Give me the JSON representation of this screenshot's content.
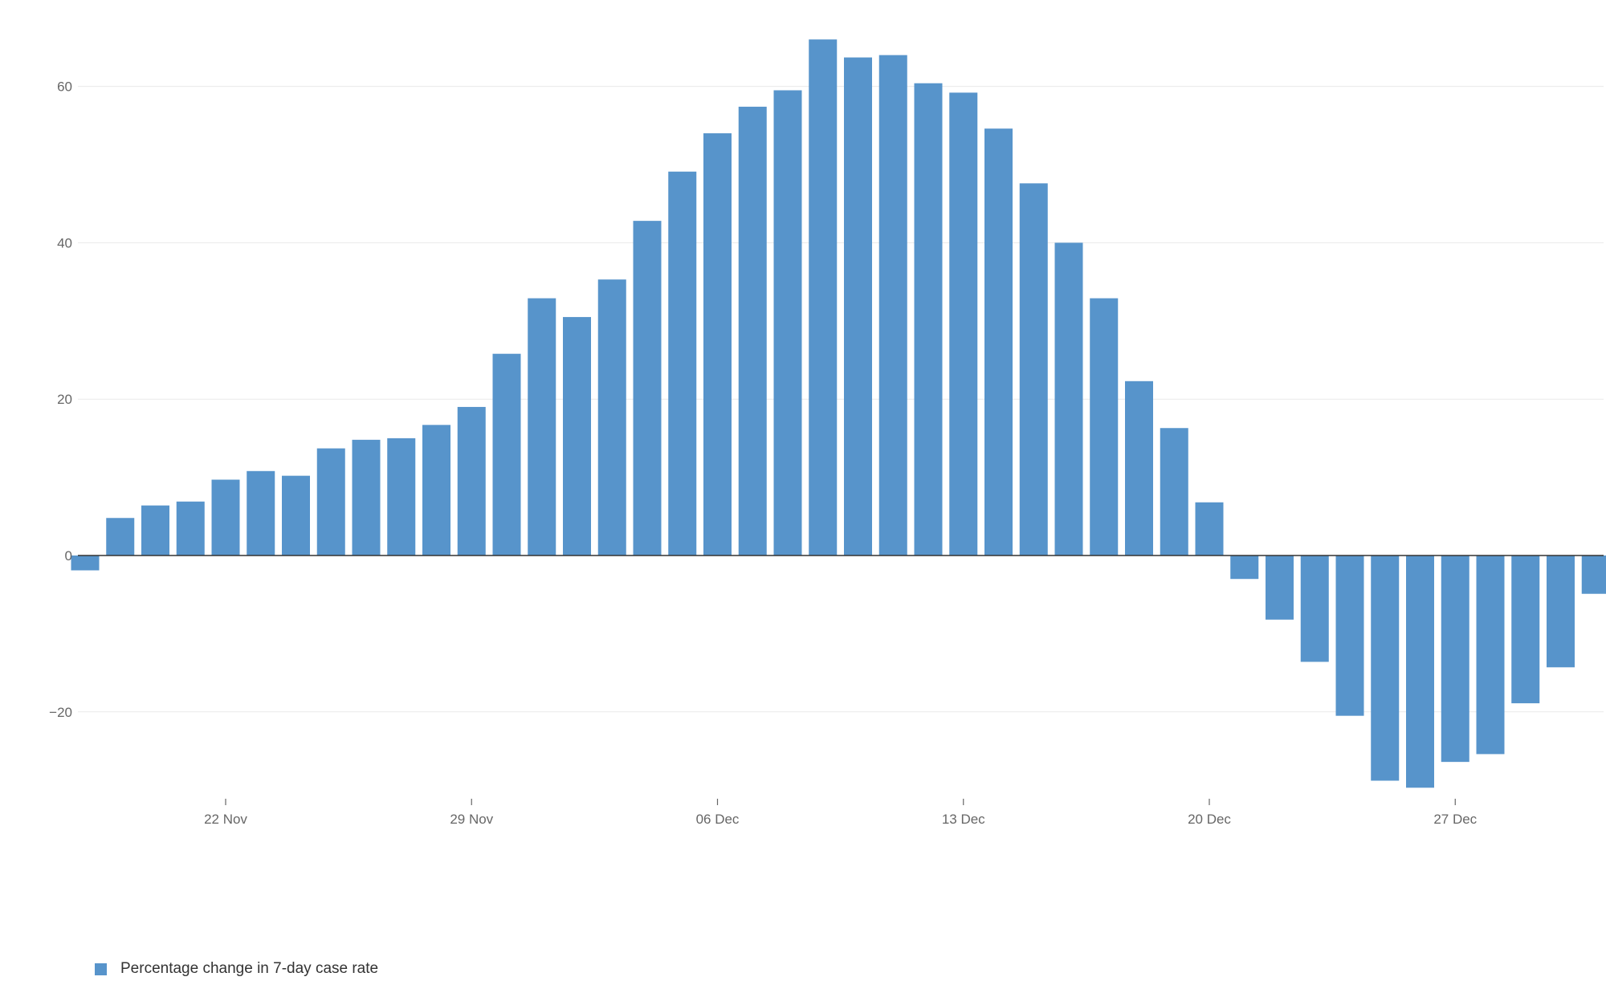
{
  "chart_data": {
    "type": "bar",
    "title": "",
    "xlabel": "",
    "ylabel": "",
    "ylim": [
      -30,
      66
    ],
    "yticks": [
      -20,
      0,
      20,
      40,
      60
    ],
    "ytick_labels": [
      "−20",
      "0",
      "20",
      "40",
      "60"
    ],
    "grid": true,
    "legend_position": "bottom-left",
    "bar_color": "#5794cb",
    "x_start": "2020-11-18",
    "xticks": [
      {
        "date": "2020-11-22",
        "label": "22 Nov"
      },
      {
        "date": "2020-11-29",
        "label": "29 Nov"
      },
      {
        "date": "2020-12-06",
        "label": "06 Dec"
      },
      {
        "date": "2020-12-13",
        "label": "13 Dec"
      },
      {
        "date": "2020-12-20",
        "label": "20 Dec"
      },
      {
        "date": "2020-12-27",
        "label": "27 Dec"
      }
    ],
    "series": [
      {
        "name": "Percentage change in 7-day case rate",
        "color": "#5794cb",
        "values": [
          -1.9,
          4.8,
          6.4,
          6.9,
          9.7,
          10.8,
          10.2,
          13.7,
          14.8,
          15.0,
          16.7,
          19.0,
          25.8,
          32.9,
          30.5,
          35.3,
          42.8,
          49.1,
          54.0,
          57.4,
          59.5,
          66.0,
          63.7,
          64.0,
          60.4,
          59.2,
          54.6,
          47.6,
          40.0,
          32.9,
          22.3,
          16.3,
          6.8,
          -3.0,
          -8.2,
          -13.6,
          -20.5,
          -28.8,
          -29.7,
          -26.4,
          -25.4,
          -18.9,
          -14.3,
          -4.9
        ]
      }
    ]
  }
}
